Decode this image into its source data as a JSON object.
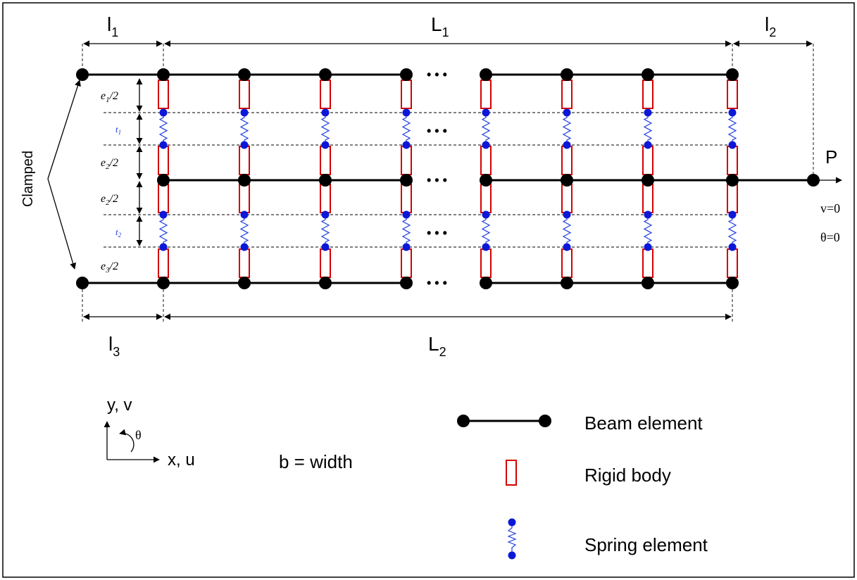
{
  "dimensions": {
    "l1": {
      "base": "l",
      "sub": "1"
    },
    "L1": {
      "base": "L",
      "sub": "1"
    },
    "l2": {
      "base": "l",
      "sub": "2"
    },
    "l3": {
      "base": "l",
      "sub": "3"
    },
    "L2": {
      "base": "L",
      "sub": "2"
    }
  },
  "layer_labels": {
    "e1": {
      "base": "e",
      "sub": "1",
      "rest": "/2"
    },
    "t1": {
      "base": "t",
      "sub": "1"
    },
    "e2a": {
      "base": "e",
      "sub": "2",
      "rest": "/2"
    },
    "e2b": {
      "base": "e",
      "sub": "2",
      "rest": "/2"
    },
    "t2": {
      "base": "t",
      "sub": "2"
    },
    "e3": {
      "base": "e",
      "sub": "3",
      "rest": "/2"
    }
  },
  "labels": {
    "clamped": "Clamped",
    "load": "P",
    "bc_v": "v=0",
    "bc_theta": "θ=0",
    "ellipsis": "• • •"
  },
  "axes": {
    "y_label": "y, v",
    "x_label": "x, u",
    "rotation_label": "θ"
  },
  "note": "b = width",
  "legend": {
    "beam": "Beam element",
    "rigid": "Rigid body",
    "spring": "Spring element"
  },
  "colors": {
    "beam": "#000000",
    "rigid_body": "#d40000",
    "spring": "#1f3fe0",
    "spring_node": "#0b18d8"
  }
}
